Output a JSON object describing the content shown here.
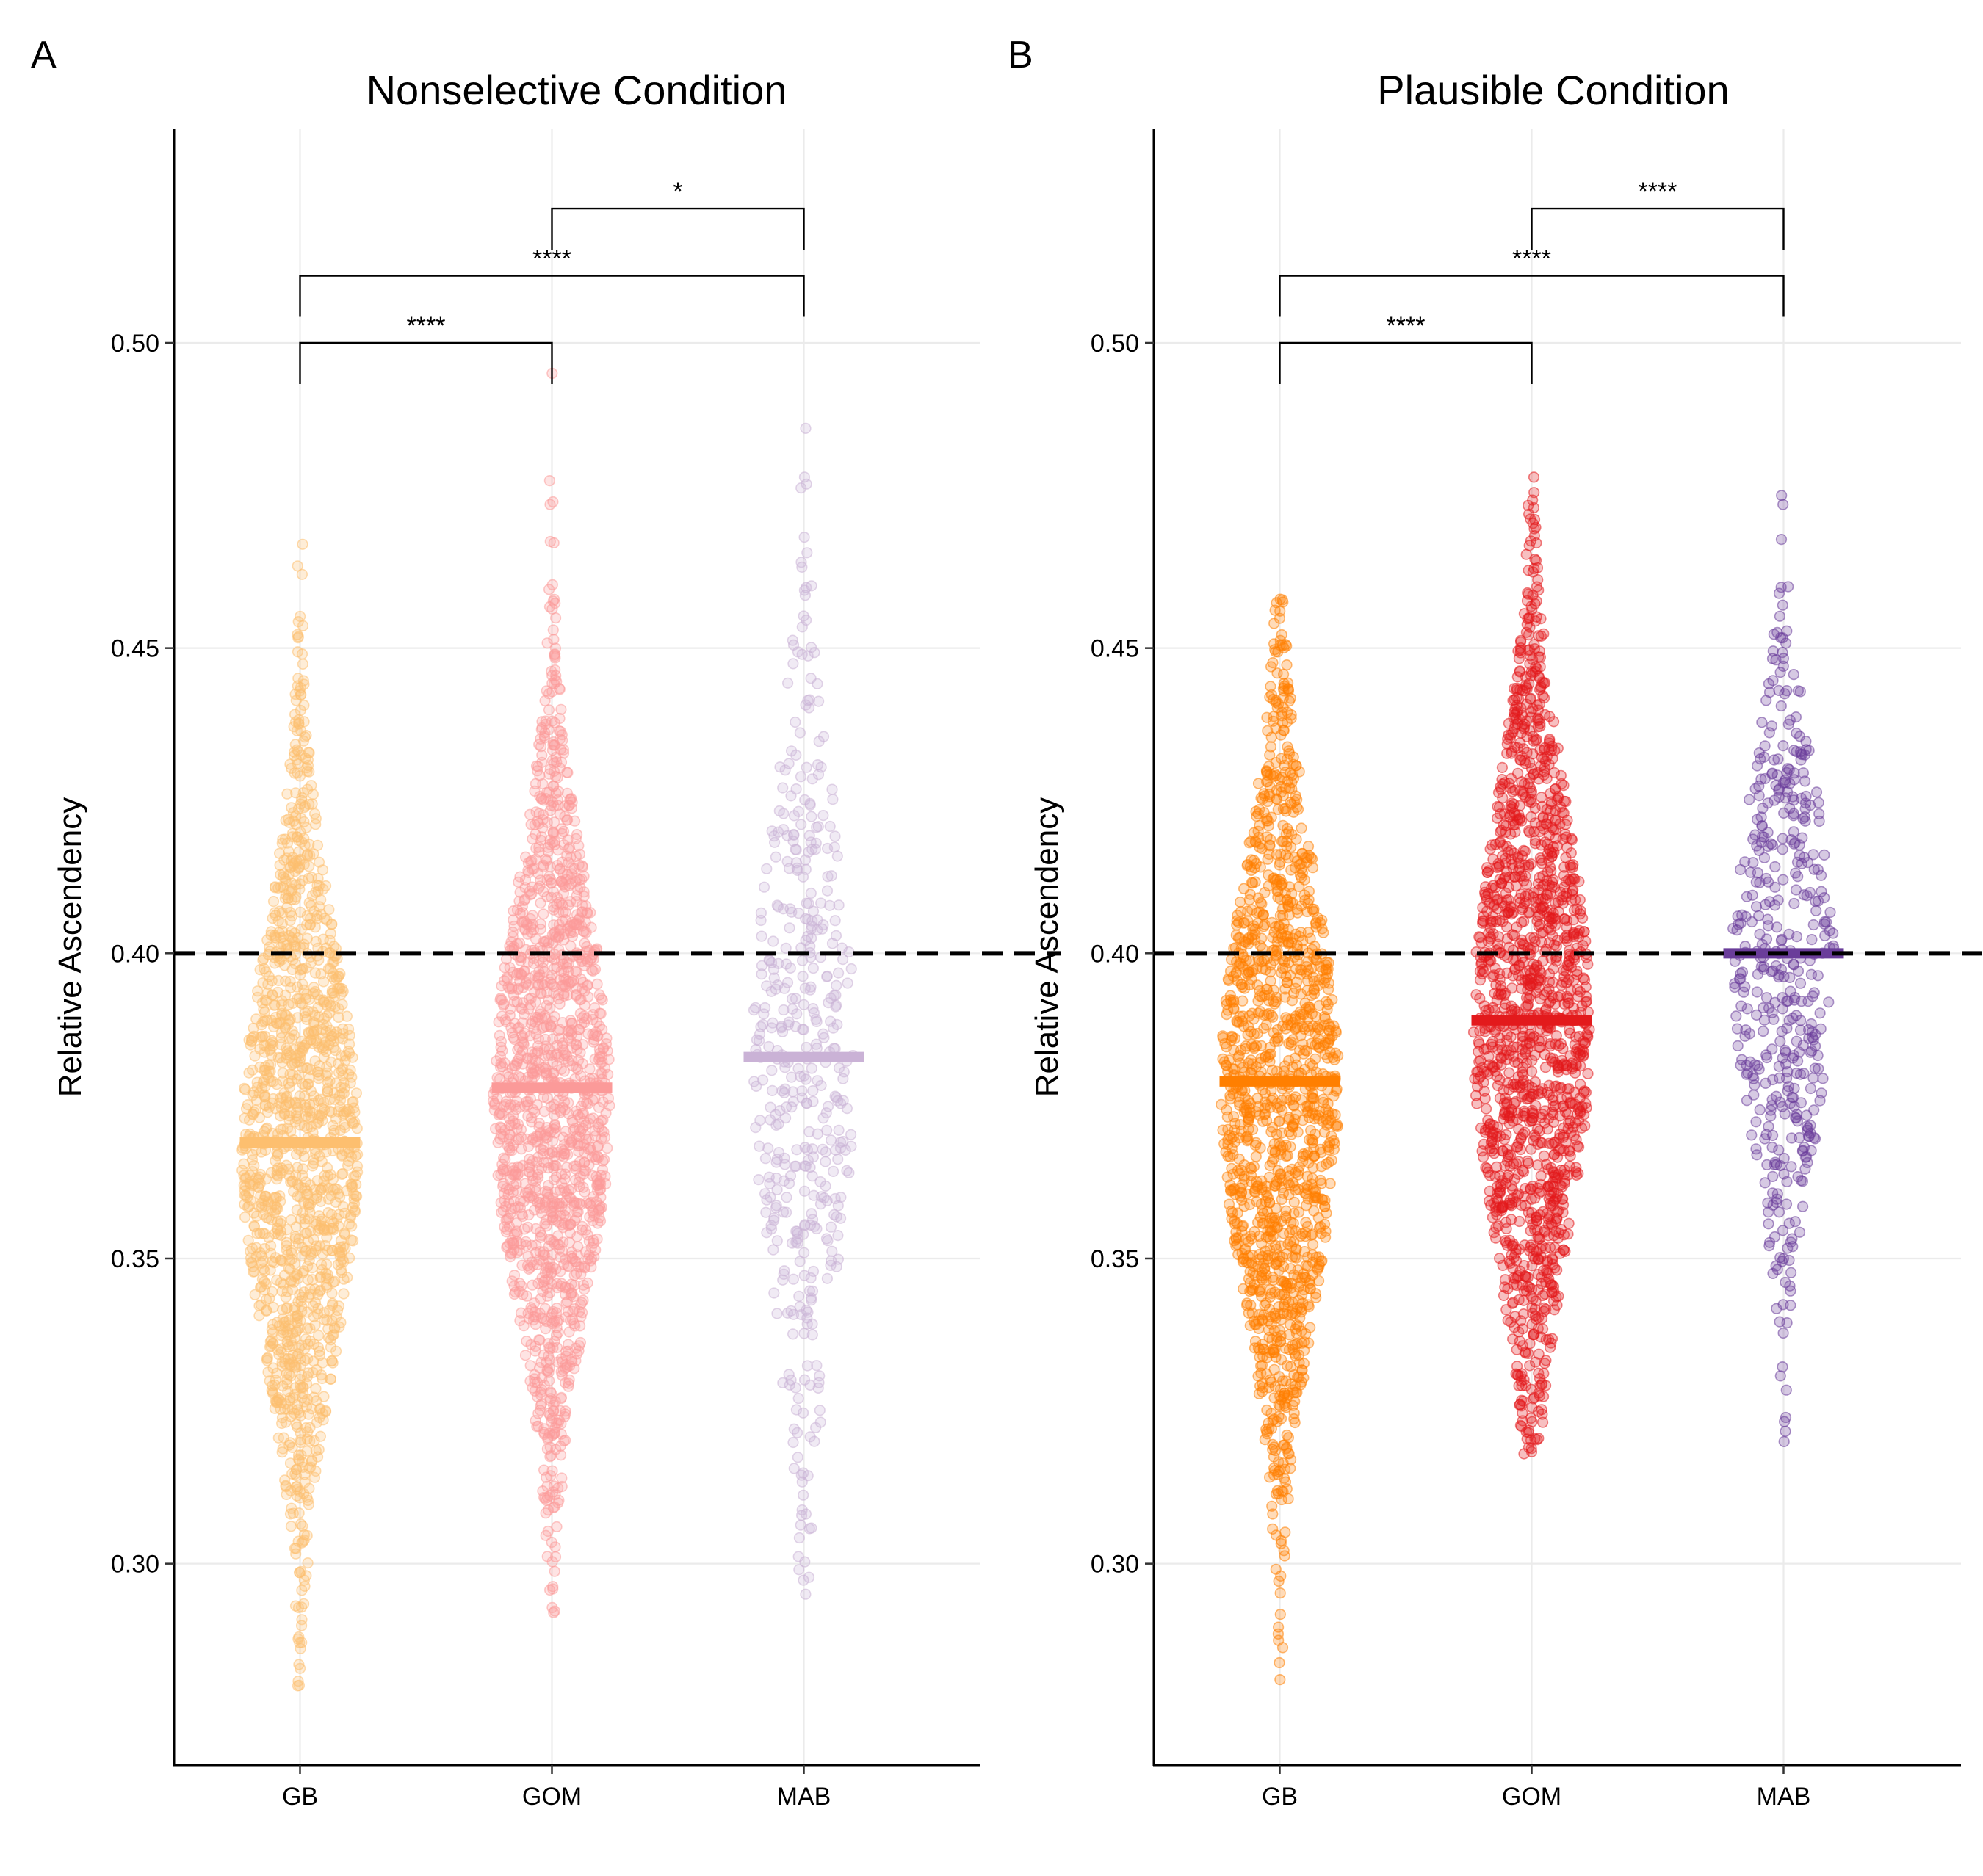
{
  "figure": {
    "panels": [
      {
        "letter": "A",
        "title": "Nonselective Condition",
        "ylabel": "Relative Ascendency"
      },
      {
        "letter": "B",
        "title": "Plausible Condition",
        "ylabel": "Relative Ascendency"
      }
    ]
  },
  "chart_data": [
    {
      "type": "scatter",
      "subtype": "beeswarm",
      "title": "Nonselective Condition",
      "xlabel": "",
      "ylabel": "Relative Ascendency",
      "categories": [
        "GB",
        "GOM",
        "MAB"
      ],
      "ylim": [
        0.267,
        0.535
      ],
      "yticks": [
        0.3,
        0.35,
        0.4,
        0.45,
        0.5
      ],
      "ytick_labels": [
        "0.30",
        "0.35",
        "0.40",
        "0.45",
        "0.50"
      ],
      "grid": true,
      "reference_line": 0.4,
      "series": [
        {
          "category": "GB",
          "color": "#fdbf6f",
          "mean": 0.369,
          "min": 0.28,
          "max": 0.467,
          "q1": 0.348,
          "median": 0.368,
          "q3": 0.39,
          "n": 1400
        },
        {
          "category": "GOM",
          "color": "#fb9a99",
          "mean": 0.378,
          "min": 0.292,
          "max": 0.495,
          "q1": 0.356,
          "median": 0.376,
          "q3": 0.398,
          "n": 1500
        },
        {
          "category": "MAB",
          "color": "#cab2d6",
          "mean": 0.383,
          "min": 0.295,
          "max": 0.486,
          "q1": 0.355,
          "median": 0.383,
          "q3": 0.405,
          "n": 450
        }
      ],
      "comparisons": [
        {
          "from": "GB",
          "to": "GOM",
          "label": "****",
          "y": 0.5
        },
        {
          "from": "GB",
          "to": "MAB",
          "label": "****",
          "y": 0.511
        },
        {
          "from": "GOM",
          "to": "MAB",
          "label": "*",
          "y": 0.522
        }
      ]
    },
    {
      "type": "scatter",
      "subtype": "beeswarm",
      "title": "Plausible Condition",
      "xlabel": "",
      "ylabel": "Relative Ascendency",
      "categories": [
        "GB",
        "GOM",
        "MAB"
      ],
      "ylim": [
        0.267,
        0.535
      ],
      "yticks": [
        0.3,
        0.35,
        0.4,
        0.45,
        0.5
      ],
      "ytick_labels": [
        "0.30",
        "0.35",
        "0.40",
        "0.45",
        "0.50"
      ],
      "grid": true,
      "reference_line": 0.4,
      "series": [
        {
          "category": "GB",
          "color": "#ff7f00",
          "mean": 0.379,
          "min": 0.281,
          "max": 0.458,
          "q1": 0.357,
          "median": 0.378,
          "q3": 0.401,
          "n": 1400
        },
        {
          "category": "GOM",
          "color": "#e31a1c",
          "mean": 0.389,
          "min": 0.318,
          "max": 0.478,
          "q1": 0.366,
          "median": 0.388,
          "q3": 0.411,
          "n": 1500
        },
        {
          "category": "MAB",
          "color": "#6a3d9a",
          "mean": 0.4,
          "min": 0.32,
          "max": 0.475,
          "q1": 0.381,
          "median": 0.399,
          "q3": 0.418,
          "n": 450
        }
      ],
      "comparisons": [
        {
          "from": "GB",
          "to": "GOM",
          "label": "****",
          "y": 0.5
        },
        {
          "from": "GB",
          "to": "MAB",
          "label": "****",
          "y": 0.511
        },
        {
          "from": "GOM",
          "to": "MAB",
          "label": "****",
          "y": 0.522
        }
      ]
    }
  ]
}
